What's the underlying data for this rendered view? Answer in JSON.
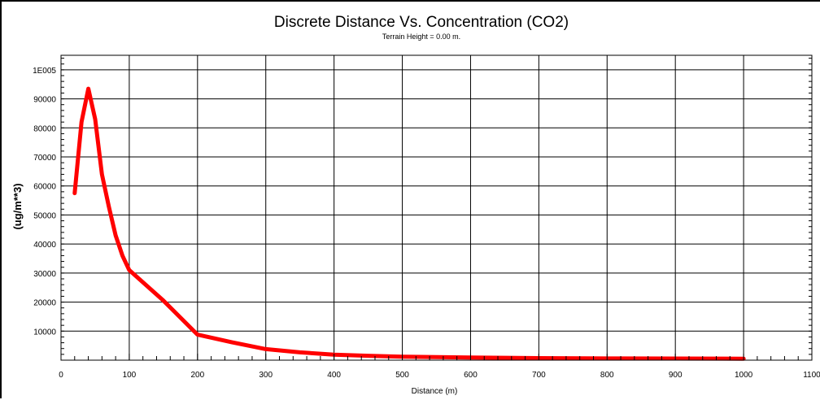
{
  "chart_data": {
    "type": "line",
    "title": "Discrete Distance Vs. Concentration (CO2)",
    "subtitle": "Terrain Height = 0.00 m.",
    "xlabel": "Distance (m)",
    "ylabel": "(ug/m**3)",
    "xlim": [
      0,
      1100
    ],
    "ylim": [
      0,
      105000
    ],
    "x_ticks": [
      "0",
      "100",
      "200",
      "300",
      "400",
      "500",
      "600",
      "700",
      "800",
      "900",
      "1000",
      "1100"
    ],
    "y_ticks": [
      "10000",
      "20000",
      "30000",
      "40000",
      "50000",
      "60000",
      "70000",
      "80000",
      "90000",
      "1E005"
    ],
    "grid": true,
    "series": [
      {
        "color": "#ff0000",
        "x": [
          20,
          30,
          40,
          50,
          60,
          70,
          80,
          90,
          100,
          150,
          200,
          250,
          300,
          350,
          400,
          450,
          500,
          600,
          700,
          800,
          900,
          1000
        ],
        "y": [
          57500,
          82000,
          93500,
          83000,
          64000,
          53000,
          43000,
          36000,
          31000,
          20500,
          8800,
          6200,
          3800,
          2700,
          1900,
          1500,
          1200,
          900,
          700,
          600,
          550,
          500
        ]
      }
    ]
  }
}
